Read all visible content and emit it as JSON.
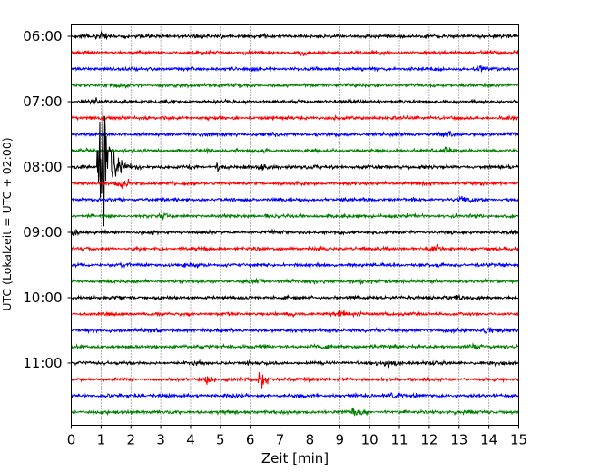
{
  "chart_data": {
    "type": "line",
    "title": "",
    "xlabel": "Zeit  [min]",
    "ylabel": "UTC (Lokalzeit = UTC + 02:00)",
    "xlim": [
      0,
      15
    ],
    "x_ticks": [
      "0",
      "1",
      "2",
      "3",
      "4",
      "5",
      "6",
      "7",
      "8",
      "9",
      "10",
      "11",
      "12",
      "13",
      "14",
      "15"
    ],
    "y_tick_labels": [
      {
        "trace": 0,
        "label": "06:00"
      },
      {
        "trace": 4,
        "label": "07:00"
      },
      {
        "trace": 8,
        "label": "08:00"
      },
      {
        "trace": 12,
        "label": "09:00"
      },
      {
        "trace": 16,
        "label": "10:00"
      },
      {
        "trace": 20,
        "label": "11:00"
      }
    ],
    "grid": "vertical-dotted",
    "trace_count": 24,
    "trace_minutes": 15,
    "color_cycle": [
      "#000000",
      "#ff0000",
      "#0000ff",
      "#008000"
    ],
    "events": [
      {
        "trace": 8,
        "start_min": 0.85,
        "peak_min": 1.0,
        "decay_min": 0.6,
        "amplitude": "large",
        "label": ""
      },
      {
        "trace": 8,
        "start_min": 4.8,
        "peak_min": 4.9,
        "decay_min": 0.3,
        "amplitude": "small",
        "label": ""
      },
      {
        "trace": 21,
        "start_min": 6.2,
        "peak_min": 6.35,
        "decay_min": 0.5,
        "amplitude": "medium",
        "label": ""
      }
    ]
  }
}
